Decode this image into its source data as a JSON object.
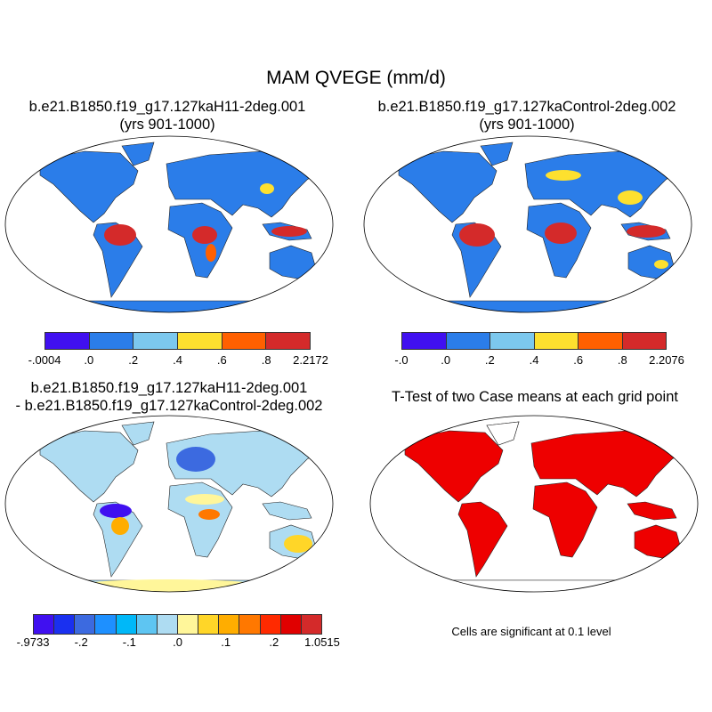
{
  "title": "MAM QVEGE (mm/d)",
  "panels": [
    {
      "title_line1": "b.e21.B1850.f19_g17.127kaH11-2deg.001",
      "title_line2": "(yrs 901-1000)"
    },
    {
      "title_line1": "b.e21.B1850.f19_g17.127kaControl-2deg.002",
      "title_line2": "(yrs 901-1000)"
    },
    {
      "title_line1": "b.e21.B1850.f19_g17.127kaH11-2deg.001",
      "title_line2": "- b.e21.B1850.f19_g17.127kaControl-2deg.002"
    },
    {
      "title_line1": "T-Test of two Case means at each grid point",
      "note": "Cells are significant at 0.1 level"
    }
  ],
  "colorbars": [
    {
      "colors": [
        "#4010f0",
        "#2b7de9",
        "#7cc8ee",
        "#fde02f",
        "#ff6000",
        "#d42a2a"
      ],
      "labels": [
        "-.0004",
        ".0",
        ".2",
        ".4",
        ".6",
        ".8",
        "2.2172"
      ]
    },
    {
      "colors": [
        "#4010f0",
        "#2b7de9",
        "#7cc8ee",
        "#fde02f",
        "#ff6000",
        "#d42a2a"
      ],
      "labels": [
        "-.0",
        ".0",
        ".2",
        ".4",
        ".6",
        ".8",
        "2.2076"
      ]
    },
    {
      "colors": [
        "#4010f0",
        "#1a30f0",
        "#3c6ae0",
        "#1e90ff",
        "#00b8f8",
        "#5ec5f2",
        "#aedcf2",
        "#fff69a",
        "#ffd628",
        "#ffad00",
        "#ff7800",
        "#ff2a00",
        "#e00000",
        "#d42a2a"
      ],
      "labels": [
        "-.9733",
        "-.2",
        "-.1",
        ".0",
        ".1",
        ".2",
        "1.0515"
      ]
    }
  ],
  "significance_color": "#ee0000"
}
